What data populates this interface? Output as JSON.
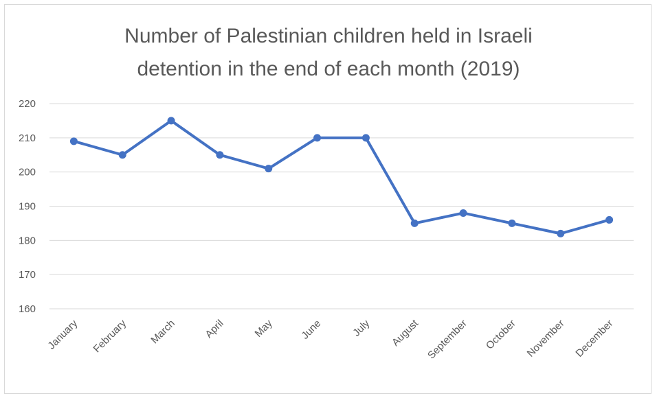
{
  "chart_data": {
    "type": "line",
    "title_lines": [
      "Number of Palestinian children held in Israeli",
      "detention in the end of each month (2019)"
    ],
    "categories": [
      "January",
      "February",
      "March",
      "April",
      "May",
      "June",
      "July",
      "August",
      "September",
      "October",
      "November",
      "December"
    ],
    "series": [
      {
        "values": [
          209,
          205,
          215,
          205,
          201,
          210,
          210,
          185,
          188,
          185,
          182,
          186
        ]
      }
    ],
    "ylim": [
      160,
      220
    ],
    "yticks": [
      160,
      170,
      180,
      190,
      200,
      210,
      220
    ],
    "grid": true,
    "legend": "none",
    "colors": {
      "line": "#4472C4",
      "grid": "#d9d9d9",
      "text": "#595959"
    }
  }
}
